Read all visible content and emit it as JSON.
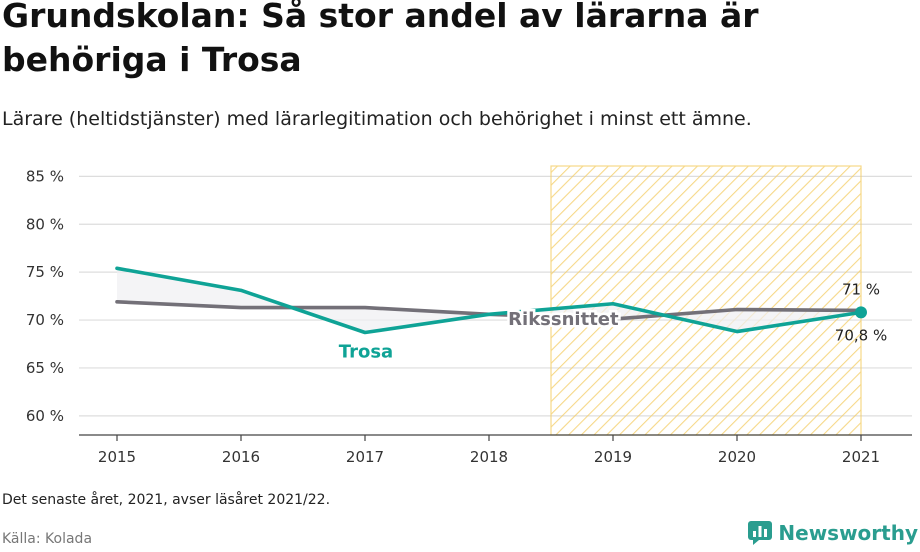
{
  "header": {
    "title": "Grundskolan: Så stor andel av lärarna är behöriga i Trosa",
    "subtitle": "Lärare (heltidstjänster) med lärarlegitimation och behörighet i minst ett ämne."
  },
  "footer": {
    "note": "Det senaste året, 2021, avser läsåret 2021/22.",
    "source": "Källa: Kolada",
    "brand": "Newsworthy"
  },
  "colors": {
    "trosa": "#0fa396",
    "riket": "#737078",
    "highlight": "#f5cf6b",
    "grid": "#dddddd"
  },
  "chart_data": {
    "type": "line",
    "x": [
      "2015",
      "2016",
      "2017",
      "2018",
      "2019",
      "2020",
      "2021"
    ],
    "ylim": [
      58,
      86.5
    ],
    "yticks": [
      60,
      65,
      70,
      75,
      80,
      85
    ],
    "ytick_labels": [
      "60 %",
      "65 %",
      "70 %",
      "75 %",
      "80 %",
      "85 %"
    ],
    "highlight_range": [
      "2018.5",
      "2021"
    ],
    "series": [
      {
        "name": "Trosa",
        "values": [
          75.4,
          73.1,
          68.7,
          70.6,
          71.7,
          68.8,
          70.8
        ],
        "end_label": "70,8 %"
      },
      {
        "name": "Rikssnittet",
        "values": [
          71.9,
          71.3,
          71.3,
          70.6,
          70.1,
          71.1,
          71.0
        ],
        "end_label": "71 %"
      }
    ]
  }
}
